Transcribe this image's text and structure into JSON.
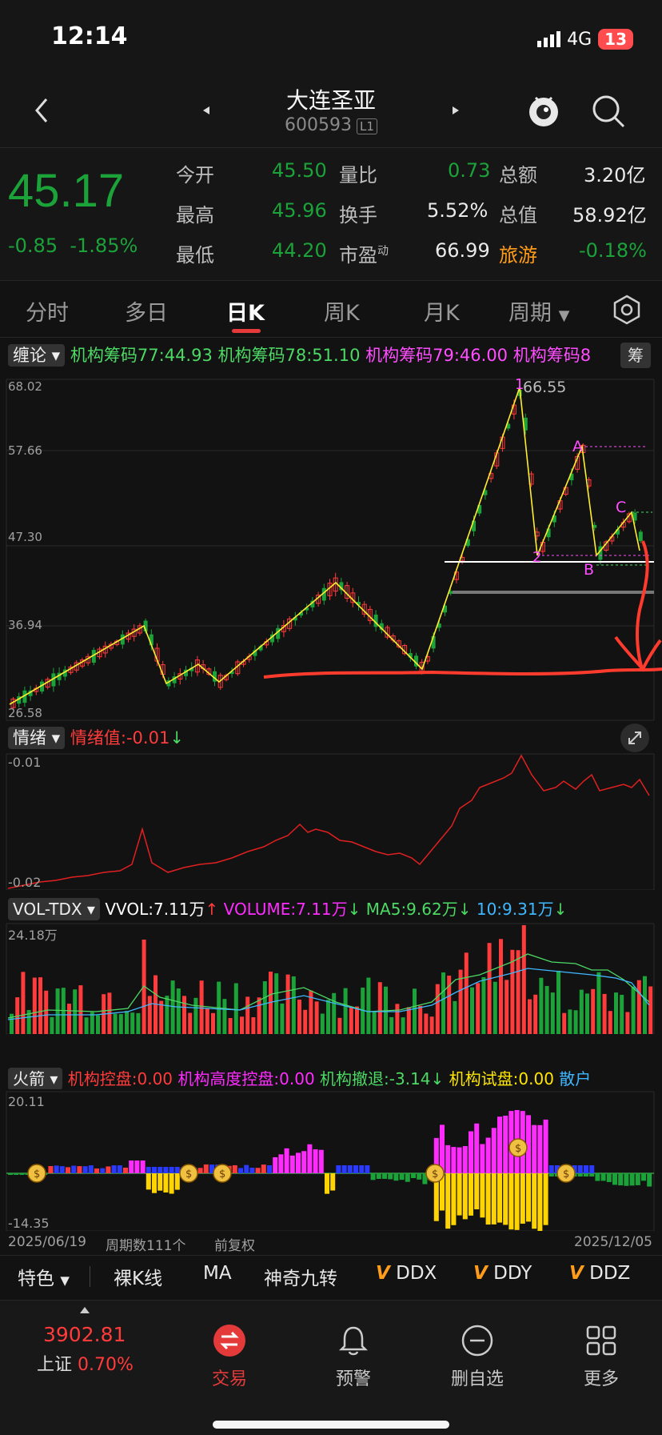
{
  "status": {
    "time": "12:14",
    "network": "4G",
    "battery": "13"
  },
  "header": {
    "title": "大连圣亚",
    "code": "600593",
    "badge": "L1"
  },
  "quote": {
    "price": "45.17",
    "change": "-0.85",
    "change_pct": "-1.85%",
    "rows": [
      {
        "l1": "今开",
        "v1": "45.50",
        "l2": "量比",
        "v2": "0.73",
        "l3": "总额",
        "v3": "3.20亿"
      },
      {
        "l1": "最高",
        "v1": "45.96",
        "l2": "换手",
        "v2": "5.52%",
        "l3": "总值",
        "v3": "58.92亿"
      },
      {
        "l1": "最低",
        "v1": "44.20",
        "l2": "市盈",
        "l2sup": "动",
        "v2": "66.99",
        "l3": "旅游",
        "v3": "-0.18%"
      }
    ]
  },
  "tabs": [
    "分时",
    "多日",
    "日K",
    "周K",
    "月K",
    "周期"
  ],
  "main_panel": {
    "indicator": "缠论",
    "legend": [
      {
        "text": "机构筹码77:44.93",
        "color": "#4cd964"
      },
      {
        "text": "机构筹码78:51.10",
        "color": "#4cd964"
      },
      {
        "text": "机构筹码79:46.00",
        "color": "#ff4dff"
      },
      {
        "text": "机构筹码8",
        "color": "#ff4dff"
      }
    ],
    "side_btn": "筹",
    "y_labels": [
      "68.02",
      "57.66",
      "47.30",
      "36.94",
      "26.58"
    ],
    "peak_label": "66.55",
    "marks": [
      "1",
      "2",
      "A",
      "B",
      "C"
    ]
  },
  "emotion_panel": {
    "name": "情绪",
    "value_text": "情绪值:-0.01",
    "arrow": "↓",
    "y_top": "-0.01",
    "y_bottom": "-0.02"
  },
  "volume_panel": {
    "name": "VOL-TDX",
    "vvol": "VVOL:7.11万",
    "vvol_arrow": "↑",
    "volume": "VOLUME:7.11万",
    "volume_arrow": "↓",
    "ma5": "MA5:9.62万",
    "ma5_arrow": "↓",
    "ma10": "10:9.31万",
    "ma10_arrow": "↓",
    "y_top": "24.18万"
  },
  "arrow_panel": {
    "name": "火箭",
    "items": [
      {
        "text": "机构控盘:0.00",
        "color": "#ff3b3b"
      },
      {
        "text": "机构高度控盘:0.00",
        "color": "#ff2bff"
      },
      {
        "text": "机构撤退:-3.14↓",
        "color": "#4cd964"
      },
      {
        "text": "机构试盘:0.00",
        "color": "#ffe600"
      },
      {
        "text": "散户",
        "color": "#3fb8ff"
      }
    ],
    "y_top": "20.11",
    "y_bottom": "-14.35"
  },
  "footer_axis": {
    "start": "2025/06/19",
    "period": "周期数111个",
    "adjust": "前复权",
    "end": "2025/12/05"
  },
  "toolbar": {
    "feature": "特色",
    "items": [
      "裸K线",
      "MA",
      "神奇九转",
      "DDX",
      "DDY",
      "DDZ"
    ]
  },
  "bottom_nav": {
    "index_value": "3902.81",
    "index_name": "上证",
    "index_pct": "0.70%",
    "items": [
      "交易",
      "预警",
      "删自选",
      "更多"
    ]
  },
  "colors": {
    "up": "#ff3b3b",
    "down": "#1ba33a",
    "accent": "#e53a3a",
    "bg": "#121212"
  }
}
